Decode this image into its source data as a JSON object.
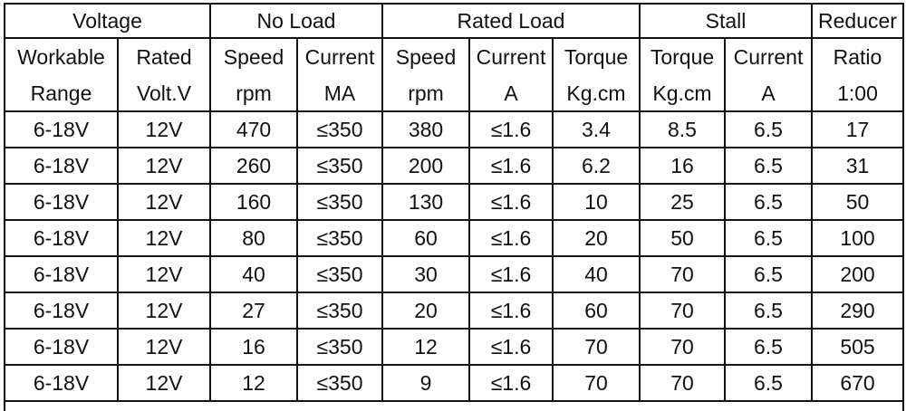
{
  "table": {
    "group_headers": [
      "Voltage",
      "No Load",
      "Rated Load",
      "Stall",
      "Reducer"
    ],
    "headers": [
      [
        "Workable",
        "Rated",
        "Speed",
        "Current",
        "Speed",
        "Current",
        "Torque",
        "Torque",
        "Current",
        "Ratio"
      ],
      [
        "Range",
        "Volt.V",
        "rpm",
        "MA",
        "rpm",
        "A",
        "Kg.cm",
        "Kg.cm",
        "A",
        "1:00"
      ]
    ],
    "rows": [
      [
        "6-18V",
        "12V",
        "470",
        "≤350",
        "380",
        "≤1.6",
        "3.4",
        "8.5",
        "6.5",
        "17"
      ],
      [
        "6-18V",
        "12V",
        "260",
        "≤350",
        "200",
        "≤1.6",
        "6.2",
        "16",
        "6.5",
        "31"
      ],
      [
        "6-18V",
        "12V",
        "160",
        "≤350",
        "130",
        "≤1.6",
        "10",
        "25",
        "6.5",
        "50"
      ],
      [
        "6-18V",
        "12V",
        "80",
        "≤350",
        "60",
        "≤1.6",
        "20",
        "50",
        "6.5",
        "100"
      ],
      [
        "6-18V",
        "12V",
        "40",
        "≤350",
        "30",
        "≤1.6",
        "40",
        "70",
        "6.5",
        "200"
      ],
      [
        "6-18V",
        "12V",
        "27",
        "≤350",
        "20",
        "≤1.6",
        "60",
        "70",
        "6.5",
        "290"
      ],
      [
        "6-18V",
        "12V",
        "16",
        "≤350",
        "12",
        "≤1.6",
        "70",
        "70",
        "6.5",
        "505"
      ],
      [
        "6-18V",
        "12V",
        "12",
        "≤350",
        "9",
        "≤1.6",
        "70",
        "70",
        "6.5",
        "670"
      ]
    ]
  }
}
